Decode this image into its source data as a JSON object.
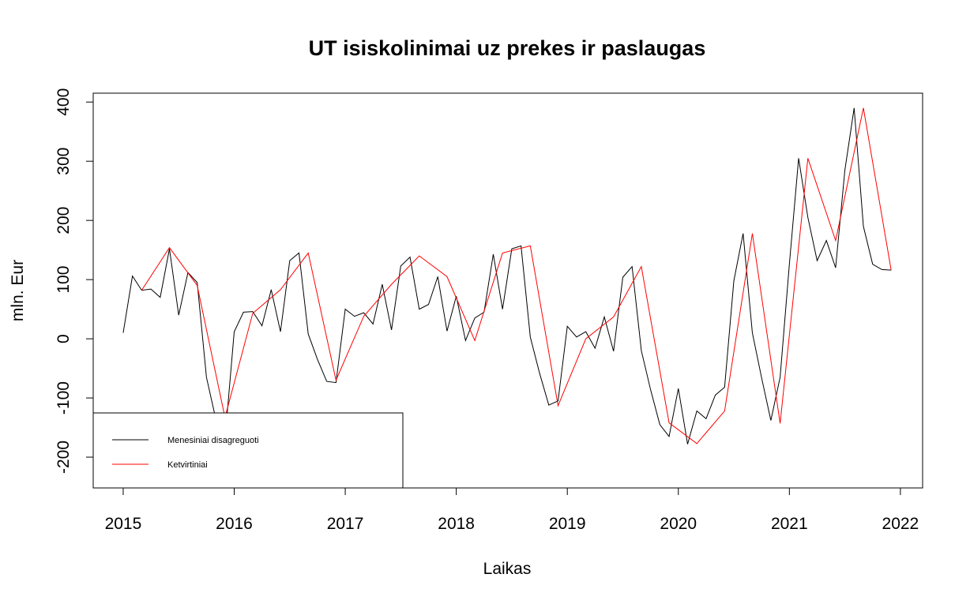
{
  "chart_data": {
    "type": "line",
    "title": "UT isiskolinimai uz prekes ir paslaugas",
    "xlabel": "Laikas",
    "ylabel": "mln. Eur",
    "xlim": [
      2014.73,
      2022.2
    ],
    "ylim": [
      -252,
      415
    ],
    "x_ticks": [
      2015,
      2016,
      2017,
      2018,
      2019,
      2020,
      2021,
      2022
    ],
    "x_tick_labels": [
      "2015",
      "2016",
      "2017",
      "2018",
      "2019",
      "2020",
      "2021",
      "2022"
    ],
    "y_ticks": [
      -200,
      -100,
      0,
      100,
      200,
      300,
      400
    ],
    "y_tick_labels": [
      "-200",
      "-100",
      "0",
      "100",
      "200",
      "300",
      "400"
    ],
    "grid": false,
    "legend_position": "bottom-left",
    "series": [
      {
        "name": "Menesiniai disagreguoti",
        "color": "#000000",
        "x_start": 2015,
        "frequency": 12,
        "values": [
          10,
          106,
          82,
          84,
          70,
          152,
          40,
          112,
          95,
          -65,
          -135,
          -170,
          12,
          45,
          46,
          22,
          83,
          12,
          132,
          145,
          8,
          -35,
          -72,
          -74,
          50,
          38,
          44,
          25,
          92,
          15,
          123,
          138,
          50,
          58,
          105,
          13,
          72,
          -3,
          35,
          45,
          143,
          50,
          152,
          157,
          3,
          -58,
          -112,
          -105,
          21,
          3,
          12,
          -16,
          37,
          -21,
          104,
          122,
          -20,
          -86,
          -145,
          -165,
          -84,
          -178,
          -122,
          -135,
          -95,
          -82,
          98,
          178,
          10,
          -66,
          -138,
          -65,
          126,
          305,
          205,
          132,
          166,
          120,
          285,
          390,
          190,
          126,
          117,
          116
        ]
      },
      {
        "name": "Ketvirtiniai",
        "color": "#ff0000",
        "x_start": 2015.1667,
        "frequency": 4,
        "values": [
          82,
          154,
          90,
          -133,
          43,
          83,
          145,
          -70,
          38,
          92,
          140,
          105,
          -3,
          145,
          157,
          -113,
          0,
          37,
          122,
          -142,
          -177,
          -122,
          178,
          -143,
          305,
          166,
          390,
          116
        ]
      }
    ]
  }
}
